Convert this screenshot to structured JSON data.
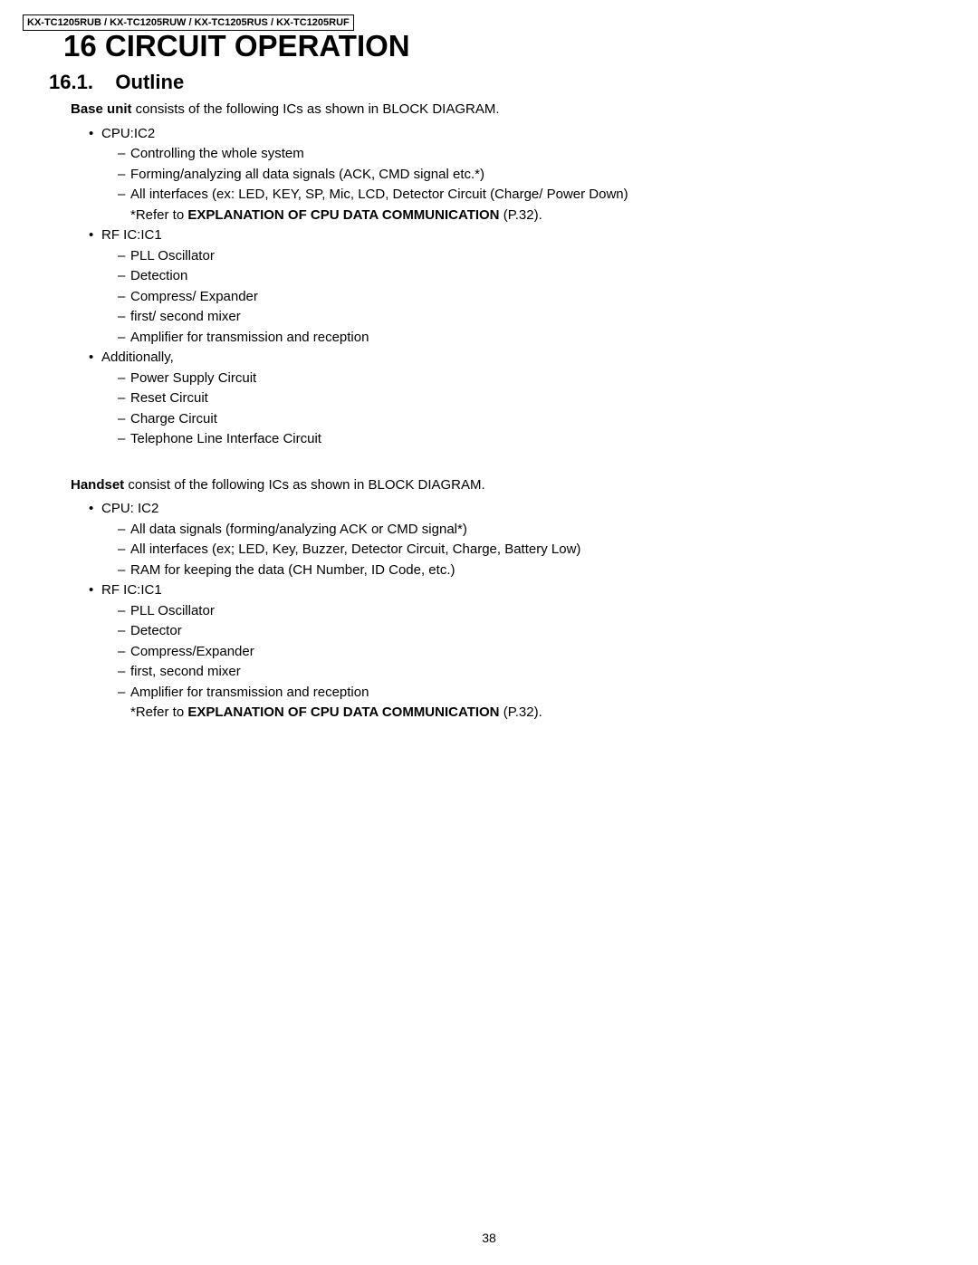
{
  "header": {
    "models": "KX-TC1205RUB / KX-TC1205RUW / KX-TC1205RUS / KX-TC1205RUF"
  },
  "chapter": {
    "number": "16",
    "title": "CIRCUIT OPERATION"
  },
  "section": {
    "number": "16.1.",
    "title": "Outline"
  },
  "baseUnit": {
    "introBold": "Base unit",
    "introRest": " consists of the following ICs as shown in BLOCK DIAGRAM.",
    "items": [
      {
        "label": "CPU:IC2",
        "subitems": [
          "Controlling the whole system",
          "Forming/analyzing all data signals (ACK, CMD signal etc.*)",
          "All interfaces (ex: LED, KEY, SP, Mic, LCD, Detector Circuit (Charge/ Power Down)"
        ],
        "refer": {
          "prefix": "*Refer to ",
          "bold": "EXPLANATION OF CPU DATA COMMUNICATION",
          "suffix": " (P.32)."
        }
      },
      {
        "label": "RF IC:IC1",
        "subitems": [
          "PLL Oscillator",
          "Detection",
          "Compress/ Expander",
          "first/ second mixer",
          "Amplifier for transmission and reception"
        ]
      },
      {
        "label": "Additionally,",
        "subitems": [
          "Power Supply Circuit",
          "Reset Circuit",
          "Charge Circuit",
          "Telephone Line Interface Circuit"
        ]
      }
    ]
  },
  "handset": {
    "introBold": "Handset",
    "introRest": " consist of the following ICs as shown in BLOCK DIAGRAM.",
    "items": [
      {
        "label": "CPU: IC2",
        "subitems": [
          "All data signals (forming/analyzing ACK or CMD signal*)",
          "All interfaces (ex; LED, Key, Buzzer, Detector Circuit, Charge, Battery Low)",
          "RAM for keeping the data (CH Number, ID Code, etc.)"
        ]
      },
      {
        "label": "RF IC:IC1",
        "subitems": [
          "PLL Oscillator",
          "Detector",
          "Compress/Expander",
          "first, second mixer",
          "Amplifier for transmission and reception"
        ],
        "refer": {
          "prefix": "*Refer to ",
          "bold": "EXPLANATION OF CPU DATA COMMUNICATION",
          "suffix": " (P.32)."
        }
      }
    ]
  },
  "pageNumber": "38"
}
